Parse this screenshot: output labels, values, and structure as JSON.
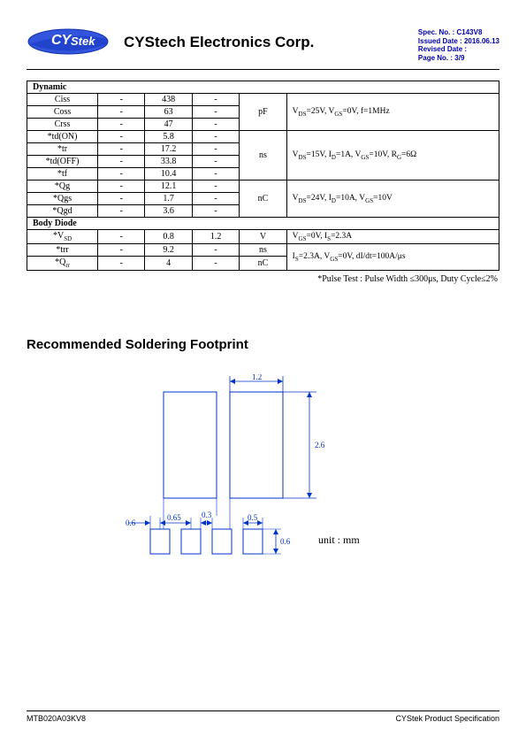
{
  "header": {
    "company": "CYStech Electronics Corp.",
    "logo_text_cy": "CY",
    "logo_text_stek": "Stek",
    "spec_label": "Spec. No. :",
    "spec_no": "C143V8",
    "issued_label": "Issued Date :",
    "issued_date": "2016.06.13",
    "revised_label": "Revised Date :",
    "revised_date": "",
    "page_label": "Page No. :",
    "page_no": "3/9"
  },
  "table": {
    "section_dynamic": "Dynamic",
    "section_bodydiode": "Body Diode",
    "col_widths_pct": [
      15,
      10,
      10,
      10,
      10,
      45
    ],
    "rows": [
      {
        "param": "Ciss",
        "min": "-",
        "typ": "438",
        "max": "-",
        "unit": "pF",
        "cond": "V<sub>DS</sub>=25V, V<sub>GS</sub>=0V, f=1MHz",
        "unit_span": 3,
        "cond_span": 3
      },
      {
        "param": "Coss",
        "min": "-",
        "typ": "63",
        "max": "-"
      },
      {
        "param": "Crss",
        "min": "-",
        "typ": "47",
        "max": "-"
      },
      {
        "param": "*td(ON)",
        "min": "-",
        "typ": "5.8",
        "max": "-",
        "unit": "ns",
        "cond": "V<sub>DS</sub>=15V, I<sub>D</sub>=1A, V<sub>GS</sub>=10V, R<sub>G</sub>=6Ω",
        "unit_span": 4,
        "cond_span": 4
      },
      {
        "param": "*tr",
        "min": "-",
        "typ": "17.2",
        "max": "-"
      },
      {
        "param": "*td(OFF)",
        "min": "-",
        "typ": "33.8",
        "max": "-"
      },
      {
        "param": "*tf",
        "min": "-",
        "typ": "10.4",
        "max": "-"
      },
      {
        "param": "*Qg",
        "min": "-",
        "typ": "12.1",
        "max": "-",
        "unit": "nC",
        "cond": "V<sub>DS</sub>=24V, I<sub>D</sub>=10A, V<sub>GS</sub>=10V",
        "unit_span": 3,
        "cond_span": 3
      },
      {
        "param": "*Qgs",
        "min": "-",
        "typ": "1.7",
        "max": "-"
      },
      {
        "param": "*Qgd",
        "min": "-",
        "typ": "3.6",
        "max": "-"
      }
    ],
    "body_rows": [
      {
        "param": "*V<sub>SD</sub>",
        "min": "-",
        "typ": "0.8",
        "max": "1.2",
        "unit": "V",
        "cond": "V<sub>GS</sub>=0V, I<sub>S</sub>=2.3A"
      },
      {
        "param": "*trr",
        "min": "-",
        "typ": "9.2",
        "max": "-",
        "unit": "ns",
        "cond": "I<sub>S</sub>=2.3A, V<sub>GS</sub>=0V, dI/dt=100A/μs",
        "cond_span": 2
      },
      {
        "param": "*Q<sub>rr</sub>",
        "min": "-",
        "typ": "4",
        "max": "-",
        "unit": "nC"
      }
    ],
    "note": "*Pulse Test : Pulse Width ≤300μs, Duty Cycle≤2%"
  },
  "footprint": {
    "title": "Recommended Soldering Footprint",
    "unit_text": "unit : mm",
    "dims": {
      "top_w": "1.2",
      "right_h": "2.6",
      "left_pad": "0.6",
      "pitch": "0.65",
      "gap": "0.3",
      "small_w": "0.5",
      "small_h": "0.6"
    },
    "colors": {
      "outline": "#0033cc",
      "dim": "#0033cc"
    }
  },
  "footer": {
    "left": "MTB020A03KV8",
    "right": "CYStek Product Specification"
  }
}
